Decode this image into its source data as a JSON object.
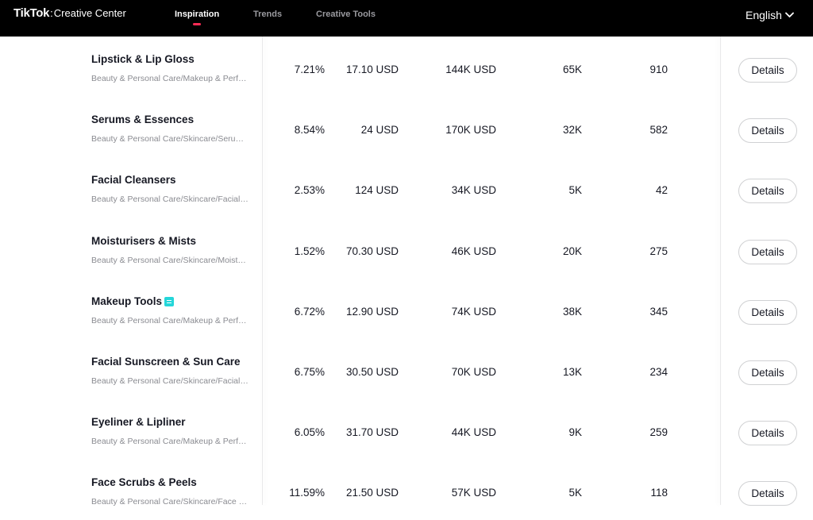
{
  "header": {
    "logo_main": "TikTok",
    "logo_separator": ":",
    "logo_sub": "Creative Center",
    "nav": [
      {
        "label": "Inspiration",
        "active": true
      },
      {
        "label": "Trends",
        "active": false
      },
      {
        "label": "Creative Tools",
        "active": false
      }
    ],
    "language": "English",
    "accent_color": "#fe2c55"
  },
  "table": {
    "details_label": "Details",
    "rows": [
      {
        "name": "Lipstick & Lip Gloss",
        "path": "Beauty & Personal Care/Makeup & Perfume/Lips",
        "v1": "7.21%",
        "v2": "17.10 USD",
        "v3": "144K USD",
        "v4": "65K",
        "v5": "910",
        "badge": false
      },
      {
        "name": "Serums & Essences",
        "path": "Beauty & Personal Care/Skincare/Serums & Essences",
        "v1": "8.54%",
        "v2": "24 USD",
        "v3": "170K USD",
        "v4": "32K",
        "v5": "582",
        "badge": false
      },
      {
        "name": "Facial Cleansers",
        "path": "Beauty & Personal Care/Skincare/Facial Cleansers",
        "v1": "2.53%",
        "v2": "124 USD",
        "v3": "34K USD",
        "v4": "5K",
        "v5": "42",
        "badge": false
      },
      {
        "name": "Moisturisers & Mists",
        "path": "Beauty & Personal Care/Skincare/Moisturisers & Mists",
        "v1": "1.52%",
        "v2": "70.30 USD",
        "v3": "46K USD",
        "v4": "20K",
        "v5": "275",
        "badge": false
      },
      {
        "name": "Makeup Tools",
        "path": "Beauty & Personal Care/Makeup & Perfume/Makeup Tools",
        "v1": "6.72%",
        "v2": "12.90 USD",
        "v3": "74K USD",
        "v4": "38K",
        "v5": "345",
        "badge": true
      },
      {
        "name": "Facial Sunscreen & Sun Care",
        "path": "Beauty & Personal Care/Skincare/Facial Sunscreen",
        "v1": "6.75%",
        "v2": "30.50 USD",
        "v3": "70K USD",
        "v4": "13K",
        "v5": "234",
        "badge": false
      },
      {
        "name": "Eyeliner & Lipliner",
        "path": "Beauty & Personal Care/Makeup & Perfume/Eyes",
        "v1": "6.05%",
        "v2": "31.70 USD",
        "v3": "44K USD",
        "v4": "9K",
        "v5": "259",
        "badge": false
      },
      {
        "name": "Face Scrubs & Peels",
        "path": "Beauty & Personal Care/Skincare/Face Scrubs",
        "v1": "11.59%",
        "v2": "21.50 USD",
        "v3": "57K USD",
        "v4": "5K",
        "v5": "118",
        "badge": false
      }
    ]
  }
}
